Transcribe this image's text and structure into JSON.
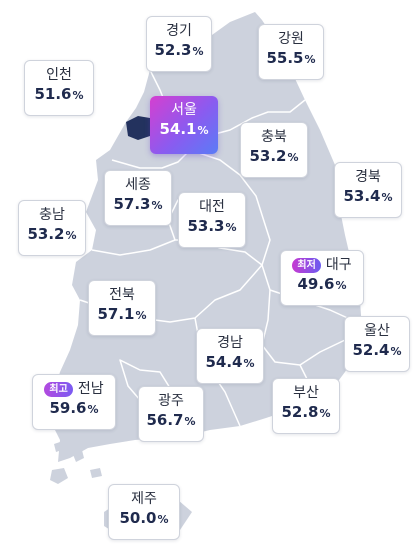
{
  "map": {
    "land_color": "#cdd2dd",
    "border_color": "#ffffff",
    "seoul_color": "#23325e"
  },
  "regions": {
    "gyeonggi": {
      "name": "경기",
      "rate": "52.3",
      "unit": "%"
    },
    "gangwon": {
      "name": "강원",
      "rate": "55.5",
      "unit": "%"
    },
    "incheon": {
      "name": "인천",
      "rate": "51.6",
      "unit": "%"
    },
    "seoul": {
      "name": "서울",
      "rate": "54.1",
      "unit": "%"
    },
    "chungbuk": {
      "name": "충북",
      "rate": "53.2",
      "unit": "%"
    },
    "sejong": {
      "name": "세종",
      "rate": "57.3",
      "unit": "%"
    },
    "gyeongbuk": {
      "name": "경북",
      "rate": "53.4",
      "unit": "%"
    },
    "chungnam": {
      "name": "충남",
      "rate": "53.2",
      "unit": "%"
    },
    "daejeon": {
      "name": "대전",
      "rate": "53.3",
      "unit": "%"
    },
    "daegu": {
      "name": "대구",
      "rate": "49.6",
      "unit": "%",
      "badge": "최저"
    },
    "jeonbuk": {
      "name": "전북",
      "rate": "57.1",
      "unit": "%"
    },
    "ulsan": {
      "name": "울산",
      "rate": "52.4",
      "unit": "%"
    },
    "gyeongnam": {
      "name": "경남",
      "rate": "54.4",
      "unit": "%"
    },
    "jeonnam": {
      "name": "전남",
      "rate": "59.6",
      "unit": "%",
      "badge": "최고"
    },
    "gwangju": {
      "name": "광주",
      "rate": "56.7",
      "unit": "%"
    },
    "busan": {
      "name": "부산",
      "rate": "52.8",
      "unit": "%"
    },
    "jeju": {
      "name": "제주",
      "rate": "50.0",
      "unit": "%"
    }
  }
}
